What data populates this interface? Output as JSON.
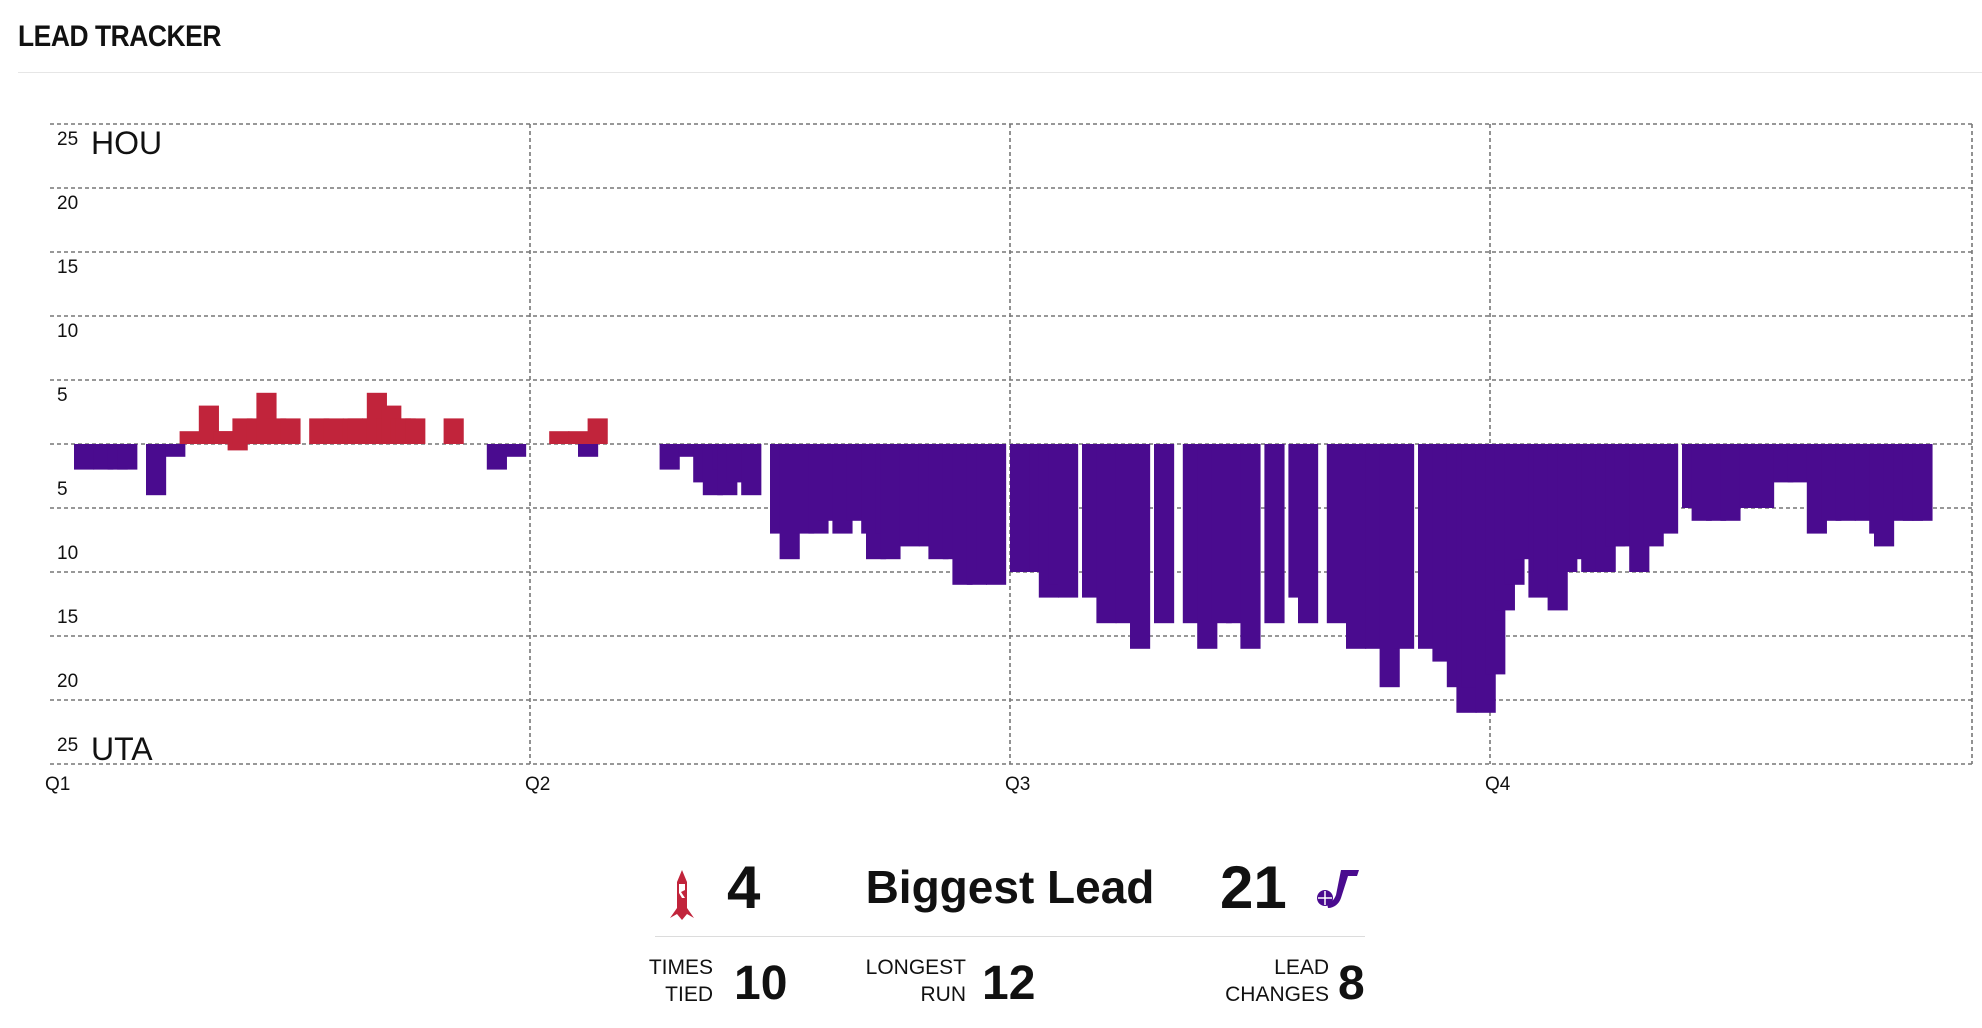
{
  "header": {
    "title": "LEAD TRACKER"
  },
  "colors": {
    "home": "#c1243b",
    "away": "#4a0b8f",
    "grid": "#777777"
  },
  "chart_data": {
    "type": "bar",
    "title": "LEAD TRACKER",
    "grid": true,
    "ylim": [
      -25,
      25
    ],
    "yticks": [
      {
        "value": 25,
        "label": "25"
      },
      {
        "value": 20,
        "label": "20"
      },
      {
        "value": 15,
        "label": "15"
      },
      {
        "value": 10,
        "label": "10"
      },
      {
        "value": 5,
        "label": "5"
      },
      {
        "value": -5,
        "label": "5"
      },
      {
        "value": -10,
        "label": "10"
      },
      {
        "value": -15,
        "label": "15"
      },
      {
        "value": -20,
        "label": "20"
      },
      {
        "value": -25,
        "label": "25"
      }
    ],
    "xticks": [
      "Q1",
      "Q2",
      "Q3",
      "Q4"
    ],
    "xlim": [
      0,
      4.12
    ],
    "top_team_label": "HOU",
    "bottom_team_label": "UTA",
    "series": [
      {
        "name": "HOU",
        "points": [
          [
            0.27,
            1
          ],
          [
            0.31,
            3
          ],
          [
            0.34,
            1
          ],
          [
            0.35,
            1
          ],
          [
            0.37,
            -0.5
          ],
          [
            0.38,
            2
          ],
          [
            0.41,
            2
          ],
          [
            0.43,
            4
          ],
          [
            0.45,
            2
          ],
          [
            0.48,
            2
          ],
          [
            0.54,
            2
          ],
          [
            0.57,
            2
          ],
          [
            0.61,
            2
          ],
          [
            0.62,
            2
          ],
          [
            0.65,
            2
          ],
          [
            0.66,
            4
          ],
          [
            0.68,
            2
          ],
          [
            0.69,
            3
          ],
          [
            0.71,
            2
          ],
          [
            0.72,
            2
          ],
          [
            0.74,
            2
          ],
          [
            0.82,
            2
          ],
          [
            1.04,
            1
          ],
          [
            1.08,
            1
          ],
          [
            1.12,
            2
          ]
        ]
      },
      {
        "name": "UTA",
        "points": [
          [
            0.05,
            -2
          ],
          [
            0.09,
            -2
          ],
          [
            0.12,
            -2
          ],
          [
            0.14,
            -2
          ],
          [
            0.2,
            -4
          ],
          [
            0.24,
            -1
          ],
          [
            0.91,
            -2
          ],
          [
            0.95,
            -1
          ],
          [
            1.1,
            -1
          ],
          [
            1.27,
            -2
          ],
          [
            1.31,
            -1
          ],
          [
            1.34,
            -3
          ],
          [
            1.36,
            -4
          ],
          [
            1.38,
            -2
          ],
          [
            1.39,
            -4
          ],
          [
            1.41,
            -3
          ],
          [
            1.44,
            -4
          ],
          [
            1.5,
            -7
          ],
          [
            1.52,
            -9
          ],
          [
            1.55,
            -7
          ],
          [
            1.58,
            -7
          ],
          [
            1.6,
            -6
          ],
          [
            1.63,
            -7
          ],
          [
            1.66,
            -6
          ],
          [
            1.69,
            -7
          ],
          [
            1.7,
            -9
          ],
          [
            1.72,
            -7
          ],
          [
            1.73,
            -9
          ],
          [
            1.77,
            -8
          ],
          [
            1.81,
            -8
          ],
          [
            1.83,
            -9
          ],
          [
            1.86,
            -9
          ],
          [
            1.88,
            -11
          ],
          [
            1.91,
            -11
          ],
          [
            1.93,
            -10
          ],
          [
            1.95,
            -11
          ],
          [
            2.0,
            -10
          ],
          [
            2.04,
            -10
          ],
          [
            2.06,
            -12
          ],
          [
            2.08,
            -11
          ],
          [
            2.1,
            -12
          ],
          [
            2.15,
            -12
          ],
          [
            2.18,
            -14
          ],
          [
            2.22,
            -14
          ],
          [
            2.25,
            -16
          ],
          [
            2.3,
            -14
          ],
          [
            2.36,
            -14
          ],
          [
            2.39,
            -16
          ],
          [
            2.42,
            -14
          ],
          [
            2.45,
            -14
          ],
          [
            2.48,
            -16
          ],
          [
            2.53,
            -14
          ],
          [
            2.58,
            -12
          ],
          [
            2.6,
            -14
          ],
          [
            2.66,
            -14
          ],
          [
            2.7,
            -16
          ],
          [
            2.74,
            -16
          ],
          [
            2.77,
            -19
          ],
          [
            2.8,
            -16
          ],
          [
            2.85,
            -16
          ],
          [
            2.88,
            -17
          ],
          [
            2.91,
            -19
          ],
          [
            2.93,
            -21
          ],
          [
            2.94,
            -19
          ],
          [
            2.97,
            -21
          ],
          [
            2.99,
            -18
          ],
          [
            3.01,
            -13
          ],
          [
            3.03,
            -11
          ],
          [
            3.05,
            -9
          ],
          [
            3.08,
            -12
          ],
          [
            3.09,
            -10
          ],
          [
            3.12,
            -13
          ],
          [
            3.14,
            -10
          ],
          [
            3.18,
            -9
          ],
          [
            3.19,
            -10
          ],
          [
            3.22,
            -10
          ],
          [
            3.24,
            -8
          ],
          [
            3.26,
            -8
          ],
          [
            3.29,
            -10
          ],
          [
            3.32,
            -8
          ],
          [
            3.35,
            -7
          ],
          [
            3.4,
            -5
          ],
          [
            3.42,
            -6
          ],
          [
            3.45,
            -6
          ],
          [
            3.48,
            -6
          ],
          [
            3.5,
            -5
          ],
          [
            3.52,
            -5
          ],
          [
            3.55,
            -5
          ],
          [
            3.59,
            -3
          ],
          [
            3.62,
            -3
          ],
          [
            3.66,
            -7
          ],
          [
            3.69,
            -6
          ],
          [
            3.72,
            -6
          ],
          [
            3.76,
            -6
          ],
          [
            3.79,
            -7
          ],
          [
            3.8,
            -8
          ],
          [
            3.82,
            -5
          ],
          [
            3.84,
            -6
          ],
          [
            3.86,
            -6
          ],
          [
            3.88,
            -6
          ]
        ]
      }
    ]
  },
  "summary": {
    "home_biggest_lead": "4",
    "biggest_lead_label": "Biggest Lead",
    "away_biggest_lead": "21",
    "times_tied_label_1": "TIMES",
    "times_tied_label_2": "TIED",
    "times_tied": "10",
    "longest_run_label_1": "LONGEST",
    "longest_run_label_2": "RUN",
    "longest_run": "12",
    "lead_changes_label_1": "LEAD",
    "lead_changes_label_2": "CHANGES",
    "lead_changes": "8"
  },
  "icons": {
    "home_logo": "rockets-logo-icon",
    "away_logo": "jazz-logo-icon"
  }
}
